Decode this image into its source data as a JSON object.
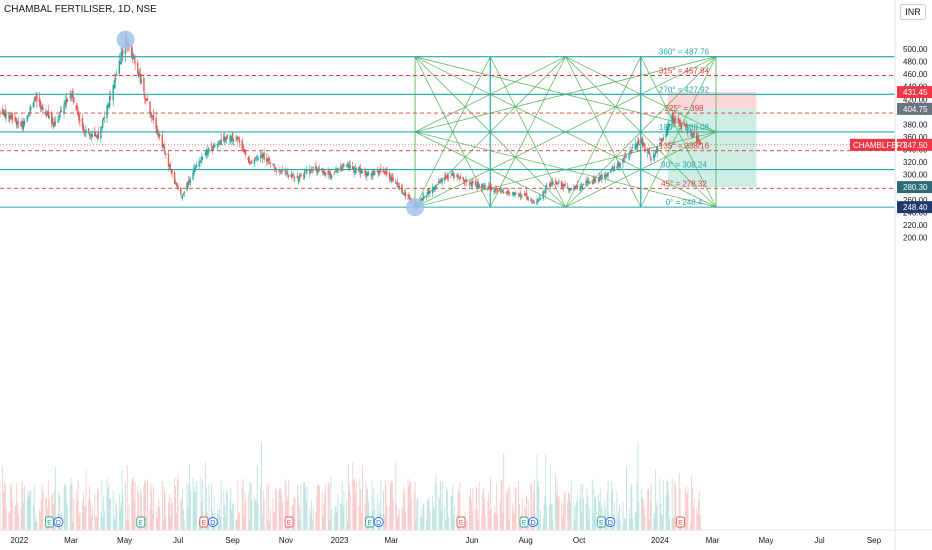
{
  "header": {
    "title": "CHAMBAL FERTILISER, 1D, NSE",
    "currency": "INR"
  },
  "colors": {
    "candle_up": "#26a69a",
    "candle_down": "#ef5350",
    "gann_fan": "#4caf50",
    "gann_level_solid": "#26a6ad",
    "gann_level_dashed": "#e53935",
    "profit_zone": "#c8ebe2",
    "loss_zone": "#fad4d6",
    "price_tag": "#f23645",
    "low_tag": "#1e3a6e",
    "marker": "#9fc3ec"
  },
  "price_axis": {
    "ticks": [
      "500.00",
      "480.00",
      "460.00",
      "440.00",
      "420.00",
      "400.00",
      "380.00",
      "360.00",
      "340.00",
      "320.00",
      "300.00",
      "280.00",
      "260.00",
      "240.00",
      "220.00",
      "200.00"
    ],
    "tags": {
      "stop": "431.45",
      "entry": "404.75",
      "current_symbol": "CHAMBLFERT",
      "current": "347.50",
      "target": "280.30",
      "low": "248.40"
    }
  },
  "time_axis": {
    "ticks": [
      "2022",
      "Mar",
      "May",
      "Jul",
      "Sep",
      "Nov",
      "2023",
      "Mar",
      "Jun",
      "Aug",
      "Oct",
      "2024",
      "Mar",
      "May",
      "Jul",
      "Sep"
    ]
  },
  "gann_levels": [
    {
      "label": "360° = 487.76",
      "price": 487.76,
      "style": "solid"
    },
    {
      "label": "315° = 457.84",
      "price": 457.84,
      "style": "dashed"
    },
    {
      "label": "270° = 427.92",
      "price": 427.92,
      "style": "solid"
    },
    {
      "label": "225° = 398",
      "price": 398,
      "style": "dashed"
    },
    {
      "label": "180° = 368.08",
      "price": 368.08,
      "style": "solid"
    },
    {
      "label": "135° = 338.16",
      "price": 338.16,
      "style": "dashed"
    },
    {
      "label": "90° = 308.24",
      "price": 308.24,
      "style": "solid"
    },
    {
      "label": "45° = 278.32",
      "price": 278.32,
      "style": "dashed"
    },
    {
      "label": "0° = 248.4",
      "price": 248.4,
      "style": "solid"
    }
  ],
  "events": [
    {
      "date": "2022-02-10",
      "types": [
        "E",
        "D"
      ]
    },
    {
      "date": "2022-05-20",
      "types": [
        "E"
      ]
    },
    {
      "date": "2022-08-05",
      "types": [
        "E",
        "D"
      ]
    },
    {
      "date": "2022-11-05",
      "types": [
        "E"
      ]
    },
    {
      "date": "2023-02-10",
      "types": [
        "E",
        "D"
      ]
    },
    {
      "date": "2023-05-20",
      "types": [
        "E"
      ]
    },
    {
      "date": "2023-08-05",
      "types": [
        "E",
        "D"
      ]
    },
    {
      "date": "2023-11-01",
      "types": [
        "E",
        "D"
      ]
    },
    {
      "date": "2024-01-25",
      "types": [
        "E"
      ]
    }
  ],
  "chart_data": {
    "type": "candlestick",
    "title": "CHAMBAL FERTILISER, 1D, NSE",
    "ylabel": "INR",
    "ylim": [
      190,
      520
    ],
    "xlim": [
      "2021-12-10",
      "2024-09-25"
    ],
    "price_anchors": [
      [
        "2021-12-10",
        400
      ],
      [
        "2022-01-05",
        380
      ],
      [
        "2022-01-20",
        420
      ],
      [
        "2022-02-10",
        380
      ],
      [
        "2022-03-01",
        430
      ],
      [
        "2022-03-15",
        370
      ],
      [
        "2022-04-01",
        360
      ],
      [
        "2022-04-20",
        450
      ],
      [
        "2022-05-02",
        515
      ],
      [
        "2022-05-15",
        470
      ],
      [
        "2022-05-30",
        400
      ],
      [
        "2022-06-10",
        360
      ],
      [
        "2022-06-25",
        295
      ],
      [
        "2022-07-05",
        265
      ],
      [
        "2022-07-20",
        310
      ],
      [
        "2022-08-05",
        340
      ],
      [
        "2022-08-20",
        355
      ],
      [
        "2022-09-05",
        360
      ],
      [
        "2022-09-20",
        320
      ],
      [
        "2022-10-05",
        330
      ],
      [
        "2022-10-25",
        305
      ],
      [
        "2022-11-15",
        295
      ],
      [
        "2022-12-01",
        310
      ],
      [
        "2022-12-20",
        300
      ],
      [
        "2023-01-10",
        315
      ],
      [
        "2023-02-01",
        300
      ],
      [
        "2023-02-20",
        305
      ],
      [
        "2023-03-10",
        280
      ],
      [
        "2023-03-28",
        250
      ],
      [
        "2023-04-15",
        275
      ],
      [
        "2023-05-01",
        295
      ],
      [
        "2023-05-15",
        300
      ],
      [
        "2023-05-28",
        285
      ],
      [
        "2023-06-15",
        280
      ],
      [
        "2023-07-01",
        275
      ],
      [
        "2023-07-20",
        270
      ],
      [
        "2023-08-01",
        265
      ],
      [
        "2023-08-12",
        252
      ],
      [
        "2023-08-25",
        280
      ],
      [
        "2023-09-05",
        290
      ],
      [
        "2023-09-20",
        275
      ],
      [
        "2023-10-05",
        285
      ],
      [
        "2023-10-20",
        290
      ],
      [
        "2023-11-05",
        305
      ],
      [
        "2023-11-25",
        330
      ],
      [
        "2023-12-10",
        355
      ],
      [
        "2023-12-22",
        325
      ],
      [
        "2024-01-05",
        360
      ],
      [
        "2024-01-15",
        390
      ],
      [
        "2024-01-25",
        380
      ],
      [
        "2024-02-05",
        370
      ],
      [
        "2024-02-16",
        347.5
      ]
    ],
    "series": [
      {
        "name": "price",
        "source": "price_anchors"
      },
      {
        "name": "volume"
      }
    ],
    "annotations": {
      "gann_square": {
        "start": "2023-03-28",
        "end": "2024-03-05",
        "low": 248.4,
        "high": 487.76
      },
      "short_position": {
        "start": "2024-01-10",
        "end": "2024-04-20",
        "entry": 404.75,
        "stop": 431.45,
        "target": 280.3
      },
      "markers": [
        {
          "date": "2022-05-02",
          "price": 515
        },
        {
          "date": "2023-03-28",
          "price": 248.4
        }
      ]
    }
  }
}
